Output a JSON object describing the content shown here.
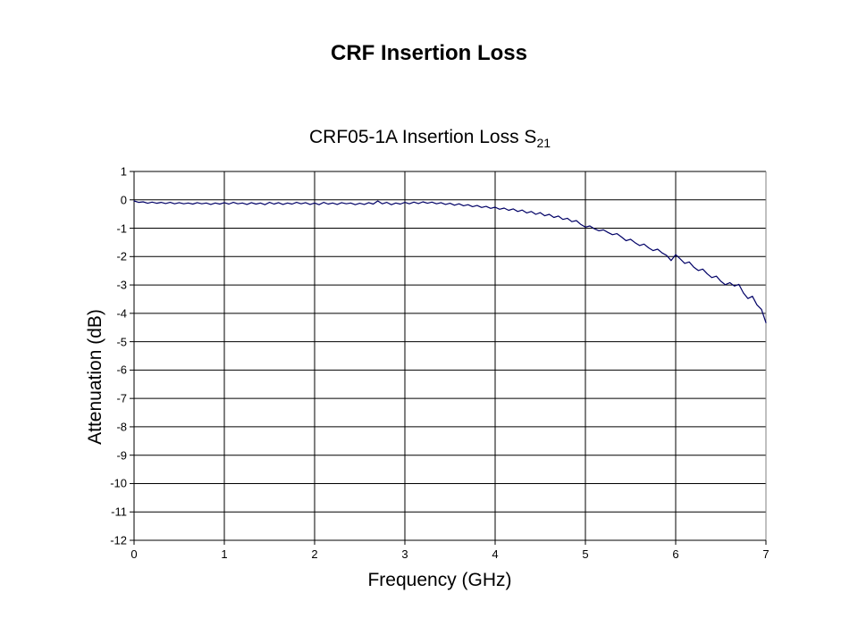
{
  "slide": {
    "title": "CRF Insertion Loss"
  },
  "chart": {
    "title": "CRF05-1A Insertion Loss S",
    "title_subscript": "21",
    "x_axis_title": "Frequency (GHz)",
    "y_axis_title": "Attenuation (dB)"
  },
  "chart_data": {
    "type": "line",
    "title": "CRF05-1A Insertion Loss S21",
    "xlabel": "Frequency (GHz)",
    "ylabel": "Attenuation (dB)",
    "xlim": [
      0,
      7
    ],
    "ylim": [
      -12,
      1
    ],
    "x_ticks": [
      0,
      1,
      2,
      3,
      4,
      5,
      6,
      7
    ],
    "y_ticks": [
      1,
      0,
      -1,
      -2,
      -3,
      -4,
      -5,
      -6,
      -7,
      -8,
      -9,
      -10,
      -11,
      -12
    ],
    "grid": true,
    "legend": false,
    "colors": {
      "line": "#000066",
      "grid": "#000000",
      "axis": "#000000",
      "border": "#808080",
      "text": "#000000",
      "background": "#ffffff"
    },
    "x": [
      0.0,
      0.05,
      0.1,
      0.15,
      0.2,
      0.25,
      0.3,
      0.35,
      0.4,
      0.45,
      0.5,
      0.55,
      0.6,
      0.65,
      0.7,
      0.75,
      0.8,
      0.85,
      0.9,
      0.95,
      1.0,
      1.05,
      1.1,
      1.15,
      1.2,
      1.25,
      1.3,
      1.35,
      1.4,
      1.45,
      1.5,
      1.55,
      1.6,
      1.65,
      1.7,
      1.75,
      1.8,
      1.85,
      1.9,
      1.95,
      2.0,
      2.05,
      2.1,
      2.15,
      2.2,
      2.25,
      2.3,
      2.35,
      2.4,
      2.45,
      2.5,
      2.55,
      2.6,
      2.65,
      2.7,
      2.75,
      2.8,
      2.85,
      2.9,
      2.95,
      3.0,
      3.05,
      3.1,
      3.15,
      3.2,
      3.25,
      3.3,
      3.35,
      3.4,
      3.45,
      3.5,
      3.55,
      3.6,
      3.65,
      3.7,
      3.75,
      3.8,
      3.85,
      3.9,
      3.95,
      4.0,
      4.05,
      4.1,
      4.15,
      4.2,
      4.25,
      4.3,
      4.35,
      4.4,
      4.45,
      4.5,
      4.55,
      4.6,
      4.65,
      4.7,
      4.75,
      4.8,
      4.85,
      4.9,
      4.95,
      5.0,
      5.05,
      5.1,
      5.15,
      5.2,
      5.25,
      5.3,
      5.35,
      5.4,
      5.45,
      5.5,
      5.55,
      5.6,
      5.65,
      5.7,
      5.75,
      5.8,
      5.85,
      5.9,
      5.95,
      6.0,
      6.05,
      6.1,
      6.15,
      6.2,
      6.25,
      6.3,
      6.35,
      6.4,
      6.45,
      6.5,
      6.55,
      6.6,
      6.65,
      6.7,
      6.75,
      6.8,
      6.85,
      6.9,
      6.95,
      7.0
    ],
    "y": [
      -0.04,
      -0.09,
      -0.07,
      -0.12,
      -0.08,
      -0.12,
      -0.09,
      -0.13,
      -0.09,
      -0.14,
      -0.1,
      -0.14,
      -0.11,
      -0.15,
      -0.1,
      -0.14,
      -0.11,
      -0.16,
      -0.11,
      -0.15,
      -0.1,
      -0.15,
      -0.09,
      -0.14,
      -0.11,
      -0.16,
      -0.1,
      -0.15,
      -0.11,
      -0.17,
      -0.09,
      -0.15,
      -0.1,
      -0.16,
      -0.11,
      -0.15,
      -0.09,
      -0.14,
      -0.1,
      -0.16,
      -0.11,
      -0.17,
      -0.09,
      -0.15,
      -0.11,
      -0.16,
      -0.1,
      -0.14,
      -0.11,
      -0.17,
      -0.12,
      -0.16,
      -0.1,
      -0.15,
      -0.04,
      -0.14,
      -0.09,
      -0.17,
      -0.11,
      -0.15,
      -0.09,
      -0.14,
      -0.08,
      -0.13,
      -0.07,
      -0.12,
      -0.08,
      -0.14,
      -0.1,
      -0.16,
      -0.12,
      -0.19,
      -0.14,
      -0.21,
      -0.17,
      -0.24,
      -0.2,
      -0.27,
      -0.23,
      -0.3,
      -0.26,
      -0.33,
      -0.29,
      -0.37,
      -0.32,
      -0.41,
      -0.36,
      -0.46,
      -0.41,
      -0.51,
      -0.45,
      -0.56,
      -0.51,
      -0.62,
      -0.57,
      -0.69,
      -0.65,
      -0.77,
      -0.73,
      -0.87,
      -0.96,
      -0.92,
      -1.02,
      -1.09,
      -1.06,
      -1.15,
      -1.23,
      -1.19,
      -1.31,
      -1.44,
      -1.39,
      -1.51,
      -1.61,
      -1.56,
      -1.69,
      -1.79,
      -1.74,
      -1.87,
      -1.96,
      -2.14,
      -1.93,
      -2.08,
      -2.24,
      -2.19,
      -2.37,
      -2.49,
      -2.44,
      -2.61,
      -2.74,
      -2.69,
      -2.87,
      -2.99,
      -2.92,
      -3.04,
      -2.98,
      -3.28,
      -3.48,
      -3.4,
      -3.7,
      -3.86,
      -4.33
    ]
  }
}
